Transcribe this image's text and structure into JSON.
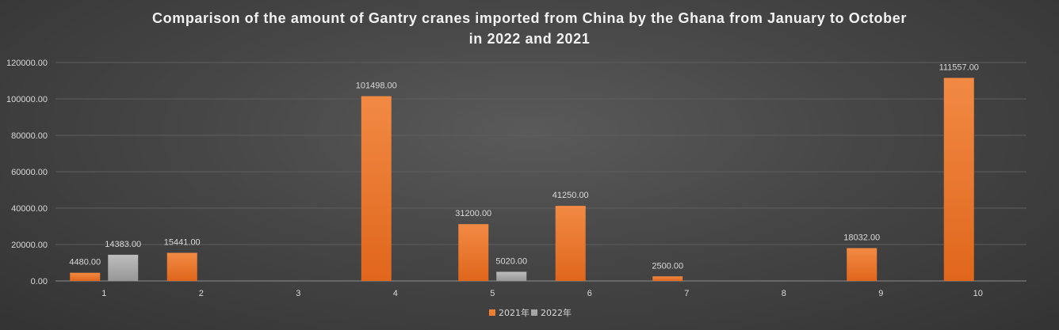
{
  "chart_data": {
    "type": "bar",
    "title_line1": "Comparison of the amount of Gantry cranes imported from China by the Ghana from January to October",
    "title_line2": "in 2022 and 2021",
    "categories": [
      "1",
      "2",
      "3",
      "4",
      "5",
      "6",
      "7",
      "8",
      "9",
      "10"
    ],
    "series": [
      {
        "name": "2021年",
        "color": "#ed7d31",
        "values": [
          4480,
          15441,
          null,
          101498,
          31200,
          41250,
          2500,
          null,
          18032,
          111557
        ]
      },
      {
        "name": "2022年",
        "color": "#a5a5a5",
        "values": [
          14383,
          null,
          null,
          null,
          5020,
          null,
          null,
          null,
          null,
          null
        ]
      }
    ],
    "ylim": [
      0,
      120000
    ],
    "yticks": [
      0,
      20000,
      40000,
      60000,
      80000,
      100000,
      120000
    ],
    "ytick_labels": [
      "0.00",
      "20000.00",
      "40000.00",
      "60000.00",
      "80000.00",
      "100000.00",
      "120000.00"
    ],
    "data_labels_format": "two-decimals",
    "grid": true,
    "legend_position": "bottom"
  }
}
